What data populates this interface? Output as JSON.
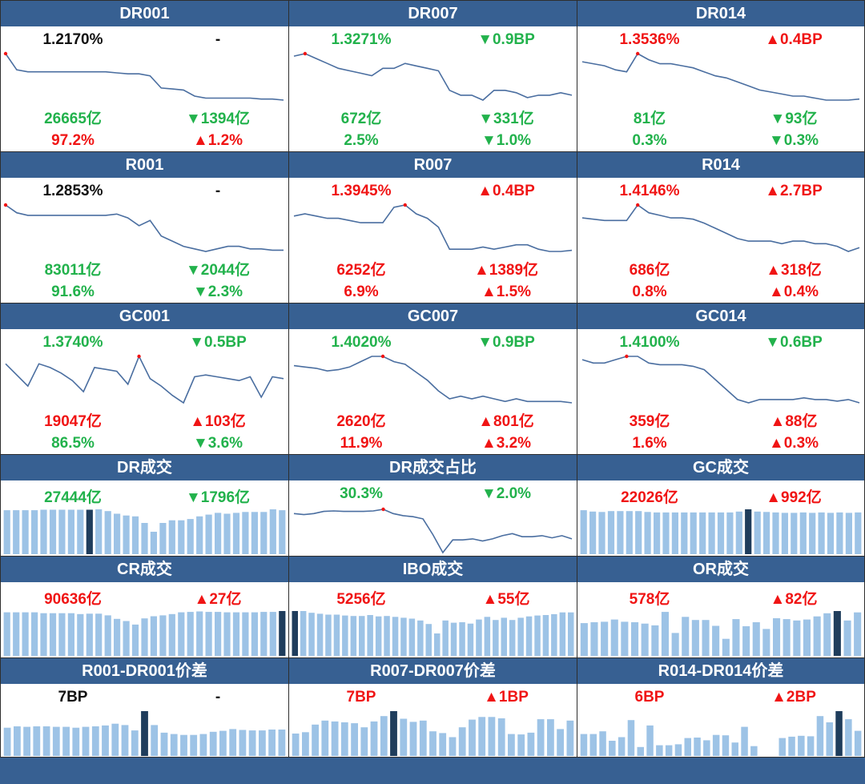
{
  "colors": {
    "header": "#376092",
    "up": "#f01414",
    "down": "#22b24c",
    "neutral": "#111111",
    "line": "#4a6ea0",
    "bar": "#9dc3e6",
    "bar_highlight": "#1f3d5c"
  },
  "rate_panels": [
    {
      "title": "DR001",
      "rate": "1.2170%",
      "rate_color": "k",
      "bp": "-",
      "bp_color": "k",
      "volume": "26665亿",
      "volume_color": "g",
      "vol_chg": "▼1394亿",
      "vol_chg_color": "g",
      "share": "97.2%",
      "share_color": "r",
      "share_chg": "▲1.2%",
      "share_chg_color": "r",
      "chart_data": {
        "type": "line",
        "values": [
          1.4,
          1.32,
          1.31,
          1.31,
          1.31,
          1.31,
          1.31,
          1.31,
          1.31,
          1.31,
          1.305,
          1.3,
          1.3,
          1.29,
          1.23,
          1.225,
          1.22,
          1.19,
          1.18,
          1.18,
          1.18,
          1.18,
          1.18,
          1.175,
          1.175,
          1.17
        ],
        "highlight_index": 0
      }
    },
    {
      "title": "DR007",
      "rate": "1.3271%",
      "rate_color": "g",
      "bp": "▼0.9BP",
      "bp_color": "g",
      "volume": "672亿",
      "volume_color": "g",
      "vol_chg": "▼331亿",
      "vol_chg_color": "g",
      "share": "2.5%",
      "share_color": "g",
      "share_chg": "▼1.0%",
      "share_chg_color": "g",
      "chart_data": {
        "type": "line",
        "values": [
          1.49,
          1.5,
          1.48,
          1.46,
          1.44,
          1.43,
          1.42,
          1.41,
          1.44,
          1.44,
          1.46,
          1.45,
          1.44,
          1.43,
          1.35,
          1.33,
          1.33,
          1.31,
          1.35,
          1.35,
          1.34,
          1.32,
          1.33,
          1.33,
          1.34,
          1.33
        ],
        "highlight_index": 1
      }
    },
    {
      "title": "DR014",
      "rate": "1.3536%",
      "rate_color": "r",
      "bp": "▲0.4BP",
      "bp_color": "r",
      "volume": "81亿",
      "volume_color": "g",
      "vol_chg": "▼93亿",
      "vol_chg_color": "g",
      "share": "0.3%",
      "share_color": "g",
      "share_chg": "▼0.3%",
      "share_chg_color": "g",
      "chart_data": {
        "type": "line",
        "values": [
          1.54,
          1.53,
          1.52,
          1.5,
          1.49,
          1.58,
          1.55,
          1.53,
          1.53,
          1.52,
          1.51,
          1.49,
          1.47,
          1.46,
          1.44,
          1.42,
          1.4,
          1.39,
          1.38,
          1.37,
          1.37,
          1.36,
          1.35,
          1.35,
          1.35,
          1.355
        ],
        "highlight_index": 5
      }
    },
    {
      "title": "R001",
      "rate": "1.2853%",
      "rate_color": "k",
      "bp": "-",
      "bp_color": "k",
      "volume": "83011亿",
      "volume_color": "g",
      "vol_chg": "▼2044亿",
      "vol_chg_color": "g",
      "share": "91.6%",
      "share_color": "g",
      "share_chg": "▼2.3%",
      "share_chg_color": "g",
      "chart_data": {
        "type": "line",
        "values": [
          1.46,
          1.43,
          1.42,
          1.42,
          1.42,
          1.42,
          1.42,
          1.42,
          1.42,
          1.42,
          1.425,
          1.41,
          1.38,
          1.4,
          1.34,
          1.32,
          1.3,
          1.29,
          1.28,
          1.29,
          1.3,
          1.3,
          1.29,
          1.29,
          1.285,
          1.285
        ],
        "highlight_index": 0
      }
    },
    {
      "title": "R007",
      "rate": "1.3945%",
      "rate_color": "r",
      "bp": "▲0.4BP",
      "bp_color": "r",
      "volume": "6252亿",
      "volume_color": "r",
      "vol_chg": "▲1389亿",
      "vol_chg_color": "r",
      "share": "6.9%",
      "share_color": "r",
      "share_chg": "▲1.5%",
      "share_chg_color": "r",
      "chart_data": {
        "type": "line",
        "values": [
          1.55,
          1.56,
          1.55,
          1.54,
          1.54,
          1.53,
          1.52,
          1.52,
          1.52,
          1.59,
          1.6,
          1.56,
          1.54,
          1.5,
          1.4,
          1.4,
          1.4,
          1.41,
          1.4,
          1.41,
          1.42,
          1.42,
          1.4,
          1.39,
          1.39,
          1.395
        ],
        "highlight_index": 10
      }
    },
    {
      "title": "R014",
      "rate": "1.4146%",
      "rate_color": "r",
      "bp": "▲2.7BP",
      "bp_color": "r",
      "volume": "686亿",
      "volume_color": "r",
      "vol_chg": "▲318亿",
      "vol_chg_color": "r",
      "share": "0.8%",
      "share_color": "r",
      "share_chg": "▲0.4%",
      "share_chg_color": "r",
      "chart_data": {
        "type": "line",
        "values": [
          1.53,
          1.525,
          1.52,
          1.52,
          1.52,
          1.58,
          1.55,
          1.54,
          1.53,
          1.53,
          1.525,
          1.51,
          1.49,
          1.47,
          1.45,
          1.44,
          1.44,
          1.44,
          1.43,
          1.44,
          1.44,
          1.43,
          1.43,
          1.42,
          1.4,
          1.415
        ],
        "highlight_index": 5
      }
    },
    {
      "title": "GC001",
      "rate": "1.3740%",
      "rate_color": "g",
      "bp": "▼0.5BP",
      "bp_color": "g",
      "volume": "19047亿",
      "volume_color": "r",
      "vol_chg": "▲103亿",
      "vol_chg_color": "r",
      "share": "86.5%",
      "share_color": "g",
      "share_chg": "▼3.6%",
      "share_chg_color": "g",
      "chart_data": {
        "type": "line",
        "values": [
          1.52,
          1.46,
          1.4,
          1.52,
          1.5,
          1.47,
          1.43,
          1.37,
          1.5,
          1.49,
          1.48,
          1.41,
          1.56,
          1.44,
          1.4,
          1.35,
          1.31,
          1.45,
          1.46,
          1.45,
          1.44,
          1.43,
          1.45,
          1.34,
          1.45,
          1.44
        ],
        "highlight_index": 12
      }
    },
    {
      "title": "GC007",
      "rate": "1.4020%",
      "rate_color": "g",
      "bp": "▼0.9BP",
      "bp_color": "g",
      "volume": "2620亿",
      "volume_color": "r",
      "vol_chg": "▲801亿",
      "vol_chg_color": "r",
      "share": "11.9%",
      "share_color": "r",
      "share_chg": "▲3.2%",
      "share_chg_color": "r",
      "chart_data": {
        "type": "line",
        "values": [
          1.575,
          1.57,
          1.565,
          1.555,
          1.56,
          1.57,
          1.59,
          1.61,
          1.61,
          1.59,
          1.58,
          1.55,
          1.52,
          1.48,
          1.45,
          1.46,
          1.45,
          1.46,
          1.45,
          1.44,
          1.45,
          1.44,
          1.44,
          1.44,
          1.44,
          1.435
        ],
        "highlight_index": 8
      }
    },
    {
      "title": "GC014",
      "rate": "1.4100%",
      "rate_color": "g",
      "bp": "▼0.6BP",
      "bp_color": "g",
      "volume": "359亿",
      "volume_color": "r",
      "vol_chg": "▲88亿",
      "vol_chg_color": "r",
      "share": "1.6%",
      "share_color": "r",
      "share_chg": "▲0.3%",
      "share_chg_color": "r",
      "chart_data": {
        "type": "line",
        "values": [
          1.59,
          1.58,
          1.58,
          1.59,
          1.6,
          1.6,
          1.58,
          1.575,
          1.575,
          1.575,
          1.57,
          1.56,
          1.53,
          1.5,
          1.47,
          1.46,
          1.47,
          1.47,
          1.47,
          1.47,
          1.475,
          1.47,
          1.47,
          1.465,
          1.47,
          1.46
        ],
        "highlight_index": 4
      }
    }
  ],
  "volume_panels": [
    {
      "title": "DR成交",
      "left": "27444亿",
      "left_color": "g",
      "right": "▼1796亿",
      "right_color": "g",
      "chart_data": {
        "type": "bar",
        "values": [
          100,
          100,
          100,
          100,
          101,
          101,
          101,
          101,
          101,
          101,
          102,
          98,
          92,
          88,
          86,
          71,
          51,
          71,
          77,
          77,
          80,
          86,
          90,
          94,
          92,
          94,
          96,
          96,
          96,
          102,
          100
        ],
        "highlight_index": 9
      }
    },
    {
      "title": "DR成交占比",
      "left": "30.3%",
      "left_color": "g",
      "right": "▼2.0%",
      "right_color": "g",
      "chart_data": {
        "type": "line",
        "values": [
          0.62,
          0.61,
          0.62,
          0.64,
          0.645,
          0.64,
          0.64,
          0.64,
          0.645,
          0.66,
          0.62,
          0.6,
          0.59,
          0.57,
          0.42,
          0.25,
          0.37,
          0.37,
          0.38,
          0.36,
          0.38,
          0.41,
          0.43,
          0.4,
          0.4,
          0.41,
          0.39,
          0.41,
          0.38
        ],
        "highlight_index": 9
      }
    },
    {
      "title": "GC成交",
      "left": "22026亿",
      "left_color": "r",
      "right": "▲992亿",
      "right_color": "r",
      "chart_data": {
        "type": "bar",
        "values": [
          99,
          96,
          95,
          97,
          97,
          97,
          97,
          95,
          94,
          94,
          94,
          94,
          94,
          94,
          94,
          94,
          94,
          96,
          101,
          96,
          95,
          94,
          93,
          93,
          94,
          93,
          94,
          93,
          94,
          93,
          94
        ],
        "highlight_index": 18
      }
    },
    {
      "title": "CR成交",
      "left": "90636亿",
      "left_color": "r",
      "right": "▲27亿",
      "right_color": "r",
      "chart_data": {
        "type": "bar",
        "values": [
          100,
          100,
          100,
          100,
          98,
          98,
          98,
          98,
          96,
          97,
          97,
          93,
          85,
          80,
          72,
          86,
          91,
          93,
          96,
          100,
          101,
          102,
          101,
          101,
          100,
          100,
          100,
          100,
          101,
          101,
          103
        ],
        "highlight_index": 30
      }
    },
    {
      "title": "IBO成交",
      "left": "5256亿",
      "left_color": "r",
      "right": "▲55亿",
      "right_color": "r",
      "chart_data": {
        "type": "bar",
        "values": [
          100,
          100,
          96,
          94,
          92,
          92,
          90,
          89,
          89,
          91,
          88,
          89,
          87,
          85,
          83,
          79,
          71,
          50,
          79,
          74,
          75,
          72,
          81,
          87,
          80,
          85,
          80,
          85,
          88,
          90,
          91,
          93,
          97,
          97
        ],
        "highlight_index": 0
      }
    },
    {
      "title": "OR成交",
      "left": "578亿",
      "left_color": "r",
      "right": "▲82亿",
      "right_color": "r",
      "chart_data": {
        "type": "bar",
        "values": [
          73,
          75,
          76,
          81,
          76,
          75,
          72,
          68,
          98,
          51,
          87,
          80,
          80,
          67,
          38,
          82,
          66,
          75,
          60,
          84,
          82,
          79,
          81,
          88,
          95,
          100,
          79,
          97
        ],
        "highlight_index": 25
      }
    }
  ],
  "spread_panels": [
    {
      "title": "R001-DR001价差",
      "left": "7BP",
      "left_color": "k",
      "right": "-",
      "right_color": "k",
      "chart_data": {
        "type": "bar",
        "values": [
          63,
          66,
          65,
          66,
          66,
          65,
          65,
          63,
          65,
          66,
          68,
          72,
          69,
          57,
          100,
          69,
          52,
          49,
          47,
          47,
          49,
          54,
          56,
          60,
          58,
          57,
          57,
          59,
          59
        ],
        "highlight_index": 14
      }
    },
    {
      "title": "R007-DR007价差",
      "left": "7BP",
      "left_color": "r",
      "right": "▲1BP",
      "right_color": "r",
      "chart_data": {
        "type": "bar",
        "values": [
          50,
          53,
          70,
          79,
          77,
          75,
          73,
          64,
          77,
          89,
          100,
          83,
          76,
          79,
          55,
          51,
          42,
          64,
          81,
          87,
          87,
          84,
          49,
          48,
          52,
          82,
          82,
          60,
          79
        ],
        "highlight_index": 10
      }
    },
    {
      "title": "R014-DR014价差",
      "left": "6BP",
      "left_color": "r",
      "right": "▲2BP",
      "right_color": "r",
      "chart_data": {
        "type": "bar",
        "values": [
          49,
          49,
          55,
          34,
          42,
          80,
          20,
          68,
          24,
          24,
          26,
          40,
          41,
          35,
          47,
          46,
          30,
          65,
          22,
          0,
          0,
          40,
          43,
          45,
          44,
          89,
          75,
          100,
          82,
          56
        ],
        "highlight_index": 27
      }
    }
  ]
}
